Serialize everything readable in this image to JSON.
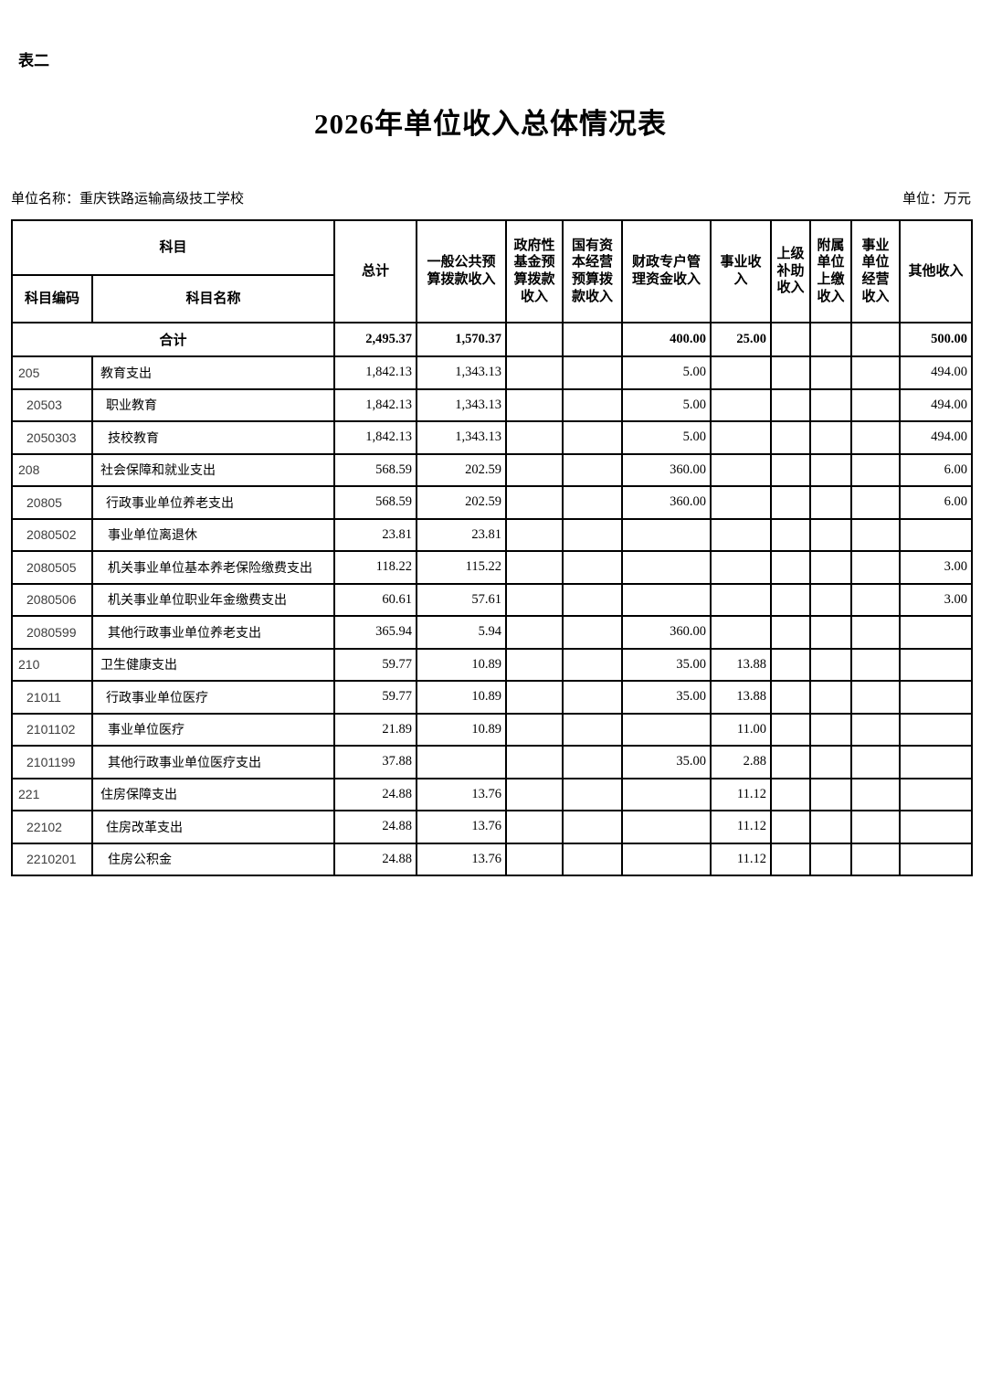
{
  "page": {
    "corner_label": "表二",
    "title": "2026年单位收入总体情况表",
    "unit_name": "单位名称：重庆铁路运输高级技工学校",
    "unit_label": "单位：万元"
  },
  "table": {
    "header": {
      "subject": "科目",
      "subject_code": "科目编码",
      "subject_name": "科目名称",
      "columns": [
        "总计",
        "一般公共预算拨款收入",
        "政府性基金预算拨款收入",
        "国有资本经营预算拨款收入",
        "财政专户管理资金收入",
        "事业收入",
        "上级补助收入",
        "附属单位上缴收入",
        "事业单位经营收入",
        "其他收入"
      ]
    },
    "total_row": {
      "label": "合计",
      "values": [
        "2,495.37",
        "1,570.37",
        "",
        "",
        "400.00",
        "25.00",
        "",
        "",
        "",
        "500.00"
      ]
    },
    "rows": [
      {
        "code": "205",
        "name": "教育支出",
        "level": 1,
        "values": [
          "1,842.13",
          "1,343.13",
          "",
          "",
          "5.00",
          "",
          "",
          "",
          "",
          "494.00"
        ]
      },
      {
        "code": "20503",
        "name": "职业教育",
        "level": 2,
        "values": [
          "1,842.13",
          "1,343.13",
          "",
          "",
          "5.00",
          "",
          "",
          "",
          "",
          "494.00"
        ]
      },
      {
        "code": "2050303",
        "name": "技校教育",
        "level": 3,
        "values": [
          "1,842.13",
          "1,343.13",
          "",
          "",
          "5.00",
          "",
          "",
          "",
          "",
          "494.00"
        ]
      },
      {
        "code": "208",
        "name": "社会保障和就业支出",
        "level": 1,
        "values": [
          "568.59",
          "202.59",
          "",
          "",
          "360.00",
          "",
          "",
          "",
          "",
          "6.00"
        ]
      },
      {
        "code": "20805",
        "name": "行政事业单位养老支出",
        "level": 2,
        "values": [
          "568.59",
          "202.59",
          "",
          "",
          "360.00",
          "",
          "",
          "",
          "",
          "6.00"
        ]
      },
      {
        "code": "2080502",
        "name": "事业单位离退休",
        "level": 3,
        "values": [
          "23.81",
          "23.81",
          "",
          "",
          "",
          "",
          "",
          "",
          "",
          ""
        ]
      },
      {
        "code": "2080505",
        "name": "机关事业单位基本养老保险缴费支出",
        "level": 3,
        "values": [
          "118.22",
          "115.22",
          "",
          "",
          "",
          "",
          "",
          "",
          "",
          "3.00"
        ]
      },
      {
        "code": "2080506",
        "name": "机关事业单位职业年金缴费支出",
        "level": 3,
        "values": [
          "60.61",
          "57.61",
          "",
          "",
          "",
          "",
          "",
          "",
          "",
          "3.00"
        ]
      },
      {
        "code": "2080599",
        "name": "其他行政事业单位养老支出",
        "level": 3,
        "values": [
          "365.94",
          "5.94",
          "",
          "",
          "360.00",
          "",
          "",
          "",
          "",
          ""
        ]
      },
      {
        "code": "210",
        "name": "卫生健康支出",
        "level": 1,
        "values": [
          "59.77",
          "10.89",
          "",
          "",
          "35.00",
          "13.88",
          "",
          "",
          "",
          ""
        ]
      },
      {
        "code": "21011",
        "name": "行政事业单位医疗",
        "level": 2,
        "values": [
          "59.77",
          "10.89",
          "",
          "",
          "35.00",
          "13.88",
          "",
          "",
          "",
          ""
        ]
      },
      {
        "code": "2101102",
        "name": "事业单位医疗",
        "level": 3,
        "values": [
          "21.89",
          "10.89",
          "",
          "",
          "",
          "11.00",
          "",
          "",
          "",
          ""
        ]
      },
      {
        "code": "2101199",
        "name": "其他行政事业单位医疗支出",
        "level": 3,
        "values": [
          "37.88",
          "",
          "",
          "",
          "35.00",
          "2.88",
          "",
          "",
          "",
          ""
        ]
      },
      {
        "code": "221",
        "name": "住房保障支出",
        "level": 1,
        "values": [
          "24.88",
          "13.76",
          "",
          "",
          "",
          "11.12",
          "",
          "",
          "",
          ""
        ]
      },
      {
        "code": "22102",
        "name": "住房改革支出",
        "level": 2,
        "values": [
          "24.88",
          "13.76",
          "",
          "",
          "",
          "11.12",
          "",
          "",
          "",
          ""
        ]
      },
      {
        "code": "2210201",
        "name": "住房公积金",
        "level": 3,
        "values": [
          "24.88",
          "13.76",
          "",
          "",
          "",
          "11.12",
          "",
          "",
          "",
          ""
        ]
      }
    ]
  }
}
